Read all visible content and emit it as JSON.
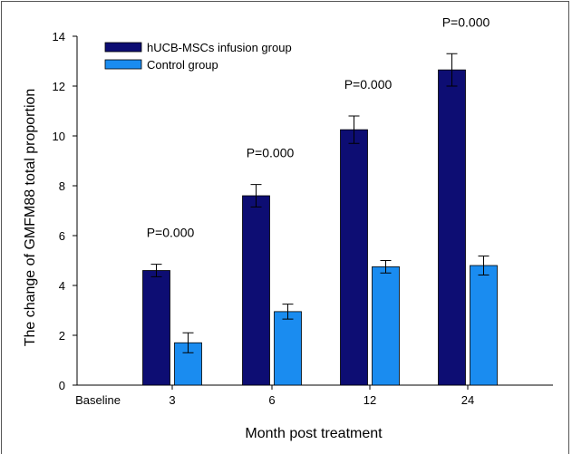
{
  "chart_data": {
    "type": "bar",
    "xlabel": "Month post treatment",
    "ylabel": "The change of GMFM88 total proportion",
    "ylim": [
      0,
      14
    ],
    "yticks": [
      0,
      2,
      4,
      6,
      8,
      10,
      12,
      14
    ],
    "categories": [
      "Baseline",
      "3",
      "6",
      "12",
      "24"
    ],
    "legend_position": "top-left",
    "grid": false,
    "series": [
      {
        "name": "hUCB-MSCs infusion group",
        "color": "#0d0d73",
        "values": [
          null,
          4.6,
          7.6,
          10.25,
          12.65
        ],
        "errors": [
          null,
          0.25,
          0.45,
          0.55,
          0.65
        ]
      },
      {
        "name": "Control group",
        "color": "#1a8cf0",
        "values": [
          null,
          1.7,
          2.95,
          4.75,
          4.8
        ],
        "errors": [
          null,
          0.4,
          0.3,
          0.25,
          0.38
        ]
      }
    ],
    "annotations": [
      "",
      "P=0.000",
      "P=0.000",
      "P=0.000",
      "P=0.000"
    ]
  }
}
